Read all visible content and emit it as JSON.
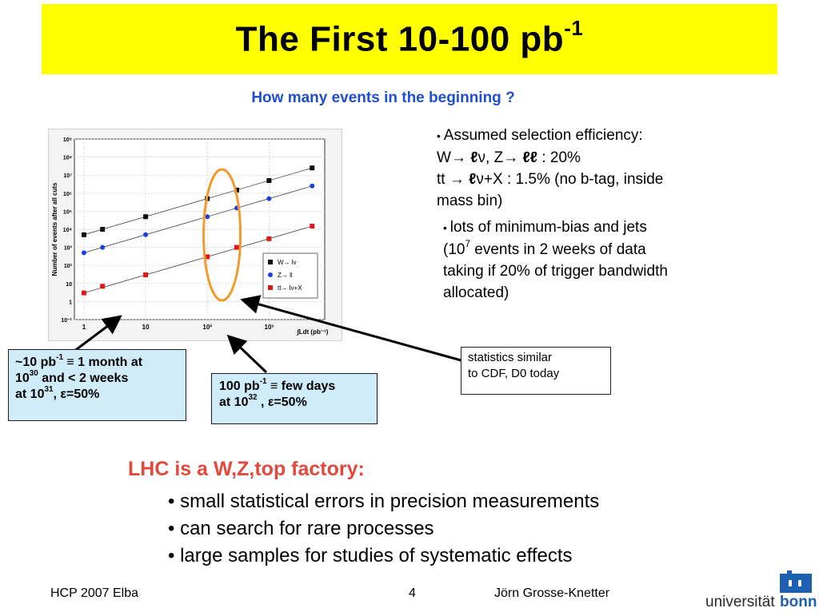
{
  "title": {
    "main": "The First 10-100 pb",
    "sup": "-1"
  },
  "subtitle": "How many events in the beginning ?",
  "right_bullets": {
    "b1": {
      "line1": "Assumed selection efficiency:",
      "line2_pre": "W",
      "line2_mid": ", Z",
      "line2_post": " : 20%",
      "line3_pre": "tt",
      "line3_post": "+X : 1.5% (no b-tag, inside",
      "line4": "mass bin)"
    },
    "b2": {
      "line1": "lots of minimum-bias and jets",
      "line2_pre": "(10",
      "line2_sup": "7",
      "line2_post": " events in 2 weeks of data",
      "line3": "taking if 20% of trigger bandwidth",
      "line4": "allocated)"
    }
  },
  "box_left": {
    "l1_pre": "~10 pb",
    "l1_sup": "-1",
    "l1_post": " ≡ 1 month at",
    "l2_pre": "10",
    "l2_sup": "30",
    "l2_post": " and < 2 weeks",
    "l3_pre": "at 10",
    "l3_sup": "31",
    "l3_post": ", ε=50%"
  },
  "box_mid": {
    "l1_pre": "100 pb",
    "l1_sup": "-1",
    "l1_post": " ≡ few days",
    "l2_pre": "at 10",
    "l2_sup": "32",
    "l2_post": " , ε=50%"
  },
  "box_stat": {
    "l1": "statistics similar",
    "l2": "to CDF, D0 today"
  },
  "lhc": {
    "heading": "LHC is a W,Z,top factory:",
    "items": [
      "small statistical errors in precision measurements",
      "can search for rare processes",
      "large samples for studies of systematic effects"
    ]
  },
  "footer": {
    "left": "HCP 2007 Elba",
    "page": "4",
    "author": "Jörn Grosse-Knetter"
  },
  "logo": {
    "text_a": "universität",
    "text_b": "bonn"
  },
  "colors": {
    "title_bg": "#ffff00",
    "subtitle": "#1f4fd0",
    "lhc": "#e2483c",
    "box_bg": "#d0ecfa",
    "ellipse": "#f29a2e",
    "w_marker": "#111111",
    "z_marker": "#1a3fe0",
    "tt_marker": "#e01818"
  },
  "chart_data": {
    "type": "scatter",
    "xlabel": "∫Ldt (pb⁻¹)",
    "ylabel": "Number of events after all cuts",
    "x_scale": "log",
    "y_scale": "log",
    "xlim": [
      0.7,
      8000
    ],
    "ylim": [
      0.1,
      1000000000
    ],
    "x_ticks": [
      "1",
      "10",
      "10²",
      "10³"
    ],
    "y_ticks": [
      "10⁻¹",
      "1",
      "10",
      "10²",
      "10³",
      "10⁴",
      "10⁵",
      "10⁶",
      "10⁷",
      "10⁸",
      "10⁹"
    ],
    "legend_position": "bottom-right",
    "series": [
      {
        "name": "W→ lν",
        "marker": "square",
        "color": "#111111",
        "x": [
          1,
          2,
          10,
          100,
          300,
          1000,
          5000
        ],
        "y": [
          5000,
          10000,
          50000,
          500000,
          1500000,
          5000000,
          25000000
        ]
      },
      {
        "name": "Z→ ll",
        "marker": "circle",
        "color": "#1a3fe0",
        "x": [
          1,
          2,
          10,
          100,
          300,
          1000,
          5000
        ],
        "y": [
          500,
          1000,
          5000,
          50000,
          150000,
          500000,
          2500000
        ]
      },
      {
        "name": "tt→ lν+X",
        "marker": "square",
        "color": "#e01818",
        "x": [
          1,
          2,
          10,
          100,
          300,
          1000,
          5000
        ],
        "y": [
          3,
          7,
          30,
          300,
          1000,
          3000,
          15000
        ]
      }
    ]
  }
}
